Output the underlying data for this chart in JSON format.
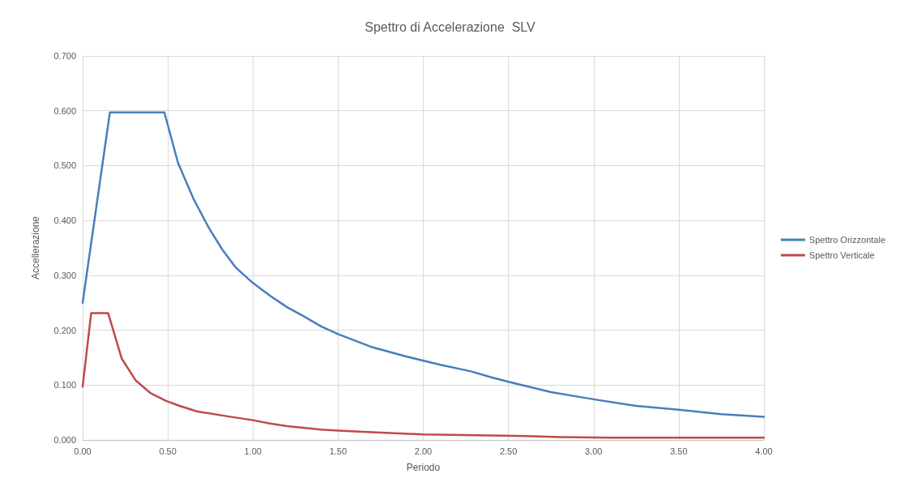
{
  "chart_data": {
    "type": "line",
    "title": "Spettro di Accelerazione  SLV",
    "xlabel": "Periodo",
    "ylabel": "Accellerazione",
    "xlim": [
      0,
      4
    ],
    "xticks": [
      {
        "value": 0,
        "label": "0.00"
      },
      {
        "value": 0.5,
        "label": "0.50"
      },
      {
        "value": 1,
        "label": "1.00"
      },
      {
        "value": 1.5,
        "label": "1.50"
      },
      {
        "value": 2,
        "label": "2.00"
      },
      {
        "value": 2.5,
        "label": "2.50"
      },
      {
        "value": 3,
        "label": "3.00"
      },
      {
        "value": 3.5,
        "label": "3.50"
      },
      {
        "value": 4,
        "label": "4.00"
      }
    ],
    "ylim": [
      0,
      0.7
    ],
    "yticks": [
      {
        "value": 0,
        "label": "0.000"
      },
      {
        "value": 0.1,
        "label": "0.100"
      },
      {
        "value": 0.2,
        "label": "0.200"
      },
      {
        "value": 0.3,
        "label": "0.300"
      },
      {
        "value": 0.4,
        "label": "0.400"
      },
      {
        "value": 0.5,
        "label": "0.500"
      },
      {
        "value": 0.6,
        "label": "0.600"
      },
      {
        "value": 0.7,
        "label": "0.700"
      }
    ],
    "grid": true,
    "legend": "right",
    "marker": "none",
    "line_style": "solid",
    "series": [
      {
        "name": "Spettro Orizzontale",
        "color": "#4a7ebb",
        "x": [
          0,
          0.16,
          0.48,
          0.56,
          0.65,
          0.74,
          0.82,
          0.9,
          1.0,
          1.1,
          1.2,
          1.3,
          1.4,
          1.5,
          1.7,
          1.9,
          2.1,
          2.28,
          2.4,
          2.5,
          2.75,
          3.0,
          3.25,
          3.5,
          3.75,
          4.0
        ],
        "values": [
          0.25,
          0.597,
          0.597,
          0.505,
          0.44,
          0.387,
          0.347,
          0.314,
          0.286,
          0.263,
          0.242,
          0.225,
          0.207,
          0.193,
          0.169,
          0.152,
          0.137,
          0.125,
          0.114,
          0.106,
          0.087,
          0.074,
          0.062,
          0.055,
          0.047,
          0.042
        ]
      },
      {
        "name": "Spettro Verticale",
        "color": "#be4b48",
        "x": [
          0,
          0.05,
          0.15,
          0.23,
          0.31,
          0.4,
          0.49,
          0.57,
          0.67,
          0.85,
          1.0,
          1.1,
          1.2,
          1.4,
          1.5,
          1.7,
          2.0,
          2.25,
          2.6,
          2.8,
          3.1,
          4.0
        ],
        "values": [
          0.097,
          0.231,
          0.231,
          0.148,
          0.109,
          0.085,
          0.071,
          0.062,
          0.052,
          0.043,
          0.036,
          0.03,
          0.025,
          0.019,
          0.017,
          0.014,
          0.01,
          0.009,
          0.007,
          0.005,
          0.004,
          0.004
        ]
      }
    ]
  }
}
